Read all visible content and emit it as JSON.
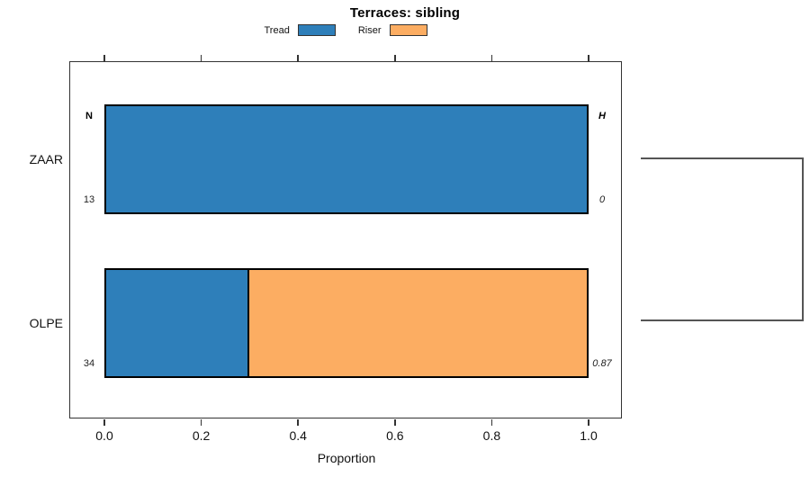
{
  "chart_data": {
    "type": "bar",
    "orientation": "horizontal",
    "stacked": true,
    "title": "Terraces: sibling",
    "xlabel": "Proportion",
    "xlim": [
      0,
      1
    ],
    "x_ticks": [
      0.0,
      0.2,
      0.4,
      0.6,
      0.8,
      1.0
    ],
    "x_tick_labels": [
      "0.0",
      "0.2",
      "0.4",
      "0.6",
      "0.8",
      "1.0"
    ],
    "categories": [
      "ZAAR",
      "OLPE"
    ],
    "series": [
      {
        "name": "Tread",
        "color": "#2e7fba",
        "values": [
          1.0,
          0.294
        ]
      },
      {
        "name": "Riser",
        "color": "#fcad62",
        "values": [
          0.0,
          0.706
        ]
      }
    ],
    "annotations": {
      "n_header": "N",
      "h_header": "H",
      "n_values": [
        "13",
        "34"
      ],
      "h_values": [
        "0",
        "0.87"
      ]
    },
    "legend_position": "top",
    "grid": false,
    "right_bracket": true
  }
}
